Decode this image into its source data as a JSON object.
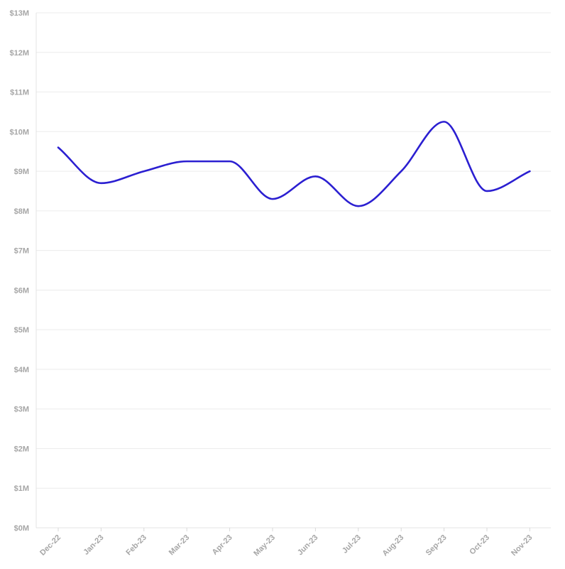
{
  "chart_data": {
    "type": "line",
    "title": "",
    "xlabel": "",
    "ylabel": "",
    "categories": [
      "Dec-22",
      "Jan-23",
      "Feb-23",
      "Mar-23",
      "Apr-23",
      "May-23",
      "Jun-23",
      "Jul-23",
      "Aug-23",
      "Sep-23",
      "Oct-23",
      "Nov-23"
    ],
    "series": [
      {
        "values": [
          9.6,
          8.7,
          9.0,
          9.25,
          9.25,
          8.3,
          8.87,
          8.12,
          9.0,
          10.25,
          8.5,
          9.0
        ],
        "color": "#2b1fd1"
      }
    ],
    "ylim": [
      0,
      13
    ],
    "y_ticks": [
      "$0M",
      "$1M",
      "$2M",
      "$3M",
      "$4M",
      "$5M",
      "$6M",
      "$7M",
      "$8M",
      "$9M",
      "$10M",
      "$11M",
      "$12M",
      "$13M"
    ],
    "y_tick_values": [
      0,
      1,
      2,
      3,
      4,
      5,
      6,
      7,
      8,
      9,
      10,
      11,
      12,
      13
    ],
    "grid": true,
    "legend": "none",
    "curve": "smooth"
  }
}
